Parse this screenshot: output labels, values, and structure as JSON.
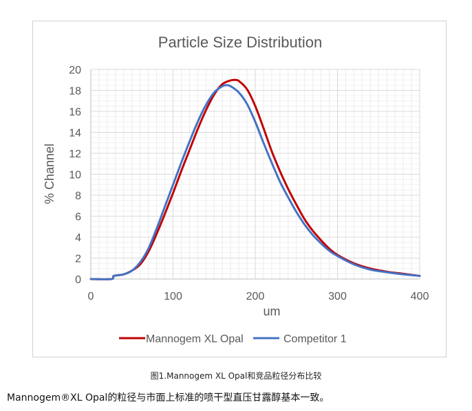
{
  "caption": "图1.Mannogem XL Opal和竞品粒径分布比较",
  "body_text": "Mannogem®XL Opal的粒径与市面上标准的喷干型直压甘露醇基本一致。",
  "chart_data": {
    "type": "line",
    "title": "Particle Size Distribution",
    "xlabel": "um",
    "ylabel": "% Channel",
    "xlim": [
      0,
      400
    ],
    "ylim": [
      0,
      20
    ],
    "x_ticks": [
      0,
      100,
      200,
      300,
      400
    ],
    "y_ticks": [
      0,
      2,
      4,
      6,
      8,
      10,
      12,
      14,
      16,
      18,
      20
    ],
    "grid": "major and minor, light gray",
    "legend_position": "bottom",
    "series": [
      {
        "name": "Mannogem XL Opal",
        "color": "#c00000",
        "x": [
          0,
          25,
          28,
          40,
          50,
          60,
          70,
          80,
          90,
          100,
          110,
          120,
          130,
          140,
          150,
          160,
          170,
          175,
          180,
          190,
          200,
          210,
          220,
          230,
          240,
          250,
          260,
          270,
          280,
          290,
          300,
          320,
          340,
          360,
          380,
          400
        ],
        "y": [
          0,
          0,
          0.3,
          0.45,
          0.8,
          1.4,
          2.6,
          4.3,
          6.2,
          8.2,
          10.3,
          12.3,
          14.3,
          16.1,
          17.6,
          18.6,
          18.95,
          19.0,
          18.9,
          18.1,
          16.5,
          14.4,
          12.2,
          10.3,
          8.6,
          7.1,
          5.7,
          4.6,
          3.7,
          2.9,
          2.3,
          1.5,
          1.0,
          0.7,
          0.5,
          0.3
        ]
      },
      {
        "name": "Competitor 1",
        "color": "#4472c4",
        "x": [
          0,
          25,
          28,
          40,
          50,
          60,
          70,
          80,
          90,
          100,
          110,
          120,
          130,
          140,
          150,
          160,
          165,
          170,
          180,
          190,
          200,
          210,
          220,
          230,
          240,
          250,
          260,
          270,
          280,
          290,
          300,
          320,
          340,
          360,
          380,
          400
        ],
        "y": [
          0,
          0,
          0.3,
          0.45,
          0.8,
          1.6,
          2.9,
          4.8,
          6.9,
          9.0,
          11.1,
          13.1,
          15.0,
          16.6,
          17.8,
          18.4,
          18.5,
          18.4,
          17.8,
          16.7,
          15.0,
          13.0,
          11.1,
          9.3,
          7.8,
          6.4,
          5.2,
          4.2,
          3.4,
          2.7,
          2.2,
          1.4,
          0.9,
          0.65,
          0.45,
          0.3
        ]
      }
    ]
  }
}
